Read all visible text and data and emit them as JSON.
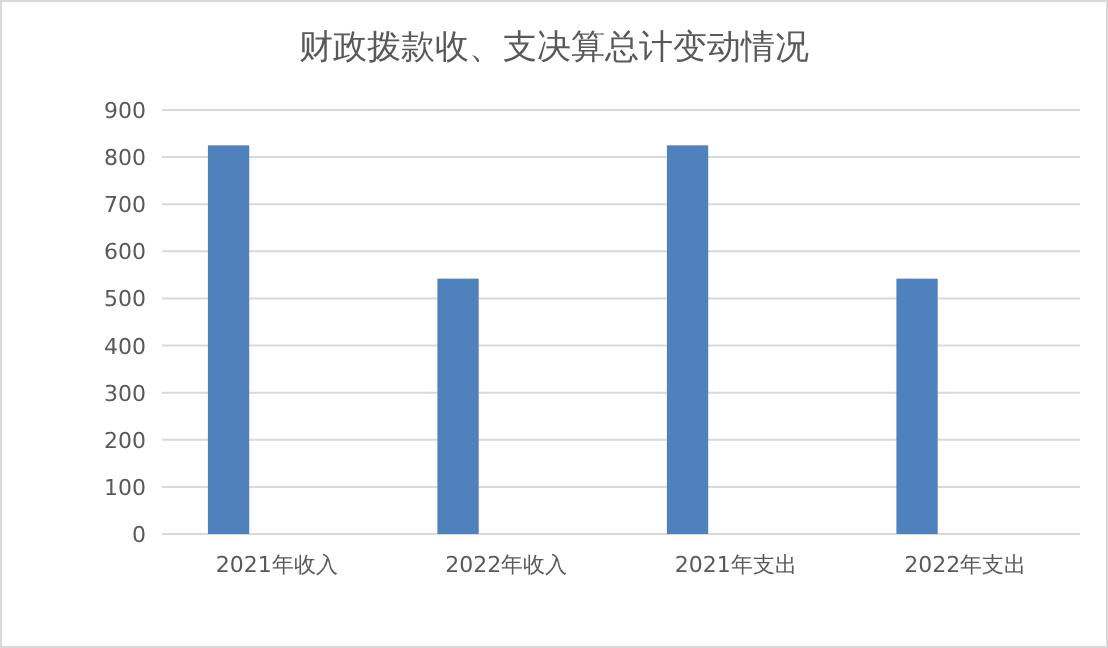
{
  "chart_data": {
    "type": "bar",
    "title": "财政拨款收、支决算总计变动情况",
    "categories": [
      "2021年收入",
      "2022年收入",
      "2021年支出",
      "2022年支出"
    ],
    "values": [
      825,
      542,
      825,
      542
    ],
    "color": "#4f81bd",
    "ylim": [
      0,
      900
    ],
    "yticks": [
      0,
      100,
      200,
      300,
      400,
      500,
      600,
      700,
      800,
      900
    ],
    "grid": "y"
  }
}
